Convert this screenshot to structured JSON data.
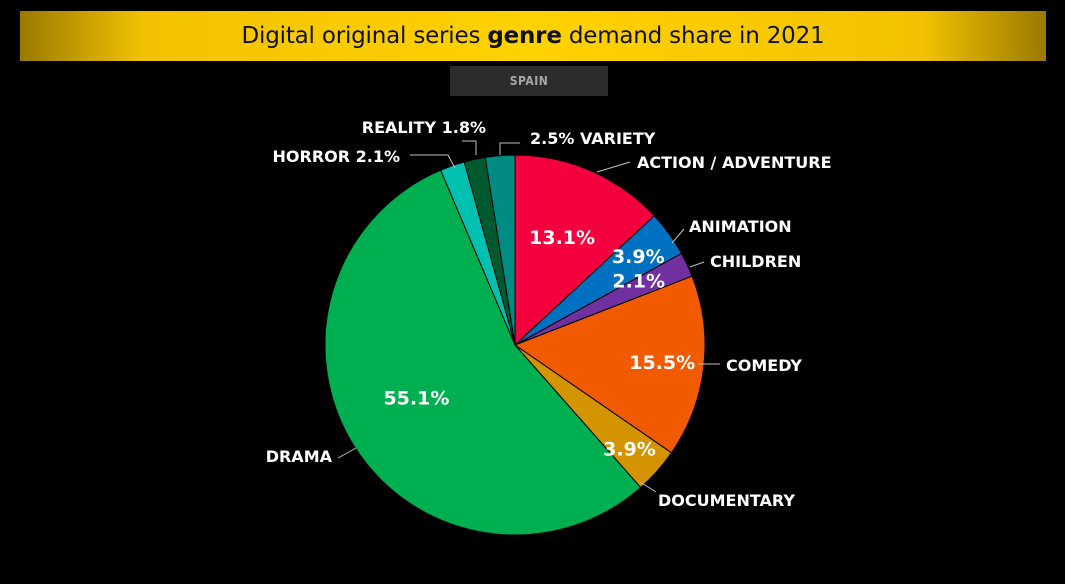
{
  "header": {
    "title_pre": "Digital original series ",
    "title_bold": "genre",
    "title_post": " demand share in 2021"
  },
  "region": "SPAIN",
  "chart_data": {
    "type": "pie",
    "title": "Digital original series genre demand share in 2021",
    "subtitle": "SPAIN",
    "slices": [
      {
        "label": "ACTION / ADVENTURE",
        "value": 13.1,
        "value_text": "13.1%",
        "color": "#f5003f"
      },
      {
        "label": "ANIMATION",
        "value": 3.9,
        "value_text": "3.9%",
        "color": "#0070c0"
      },
      {
        "label": "CHILDREN",
        "value": 2.1,
        "value_text": "2.1%",
        "color": "#7030a0"
      },
      {
        "label": "COMEDY",
        "value": 15.5,
        "value_text": "15.5%",
        "color": "#f25a00"
      },
      {
        "label": "DOCUMENTARY",
        "value": 3.9,
        "value_text": "3.9%",
        "color": "#d49400"
      },
      {
        "label": "DRAMA",
        "value": 55.1,
        "value_text": "55.1%",
        "color": "#00b050"
      },
      {
        "label": "HORROR",
        "value": 2.1,
        "value_text": "HORROR 2.1%",
        "color": "#00c0b0"
      },
      {
        "label": "REALITY",
        "value": 1.8,
        "value_text": "REALITY 1.8%",
        "color": "#005a30"
      },
      {
        "label": "VARIETY",
        "value": 2.5,
        "value_text": "2.5% VARIETY",
        "color": "#008b84"
      }
    ]
  }
}
